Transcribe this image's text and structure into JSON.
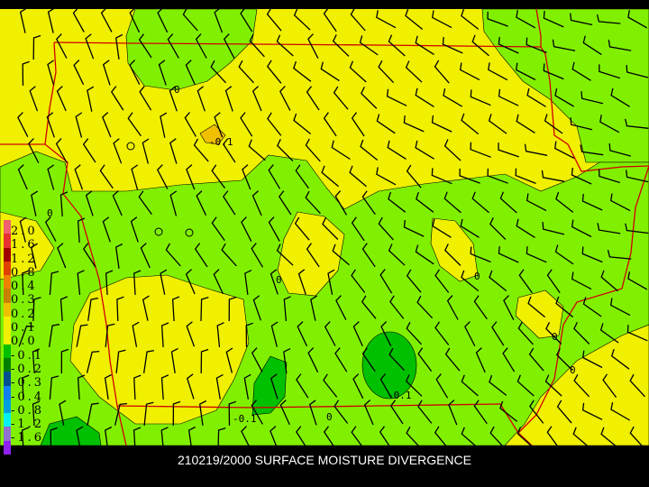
{
  "title": "210219/2000 SURFACE MOISTURE DIVERGENCE",
  "colors": {
    "background": "#f0f000",
    "positive_light": "#f0f000",
    "negative_light": "#80f000",
    "negative_medium": "#00c000",
    "state_lines": "#d00000",
    "barbs": "#000000"
  },
  "legend": {
    "labels": [
      "2.0",
      "1.6",
      "1.2",
      "0.8",
      "0.4",
      "0.3",
      "0.2",
      "0.1",
      "0.0",
      "-0.1",
      "-0.2",
      "-0.3",
      "-0.4",
      "-0.8",
      "-1.2",
      "-1.6"
    ],
    "colors": [
      "#f06070",
      "#e83030",
      "#a00000",
      "#e04000",
      "#f08000",
      "#c88000",
      "#f0c000",
      "#f0f000",
      "#f0f000",
      "#00c000",
      "#008000",
      "#005090",
      "#1080f0",
      "#00a0e0",
      "#00f0f0",
      "#9070d0",
      "#9020f0"
    ]
  },
  "contour_labels": [
    {
      "text": "0"
    },
    {
      "text": "-0.1"
    },
    {
      "text": "0"
    },
    {
      "text": "0"
    },
    {
      "text": "0"
    },
    {
      "text": "0"
    },
    {
      "text": "0"
    },
    {
      "text": "-0.1"
    },
    {
      "text": "-0.1"
    },
    {
      "text": "0"
    }
  ]
}
